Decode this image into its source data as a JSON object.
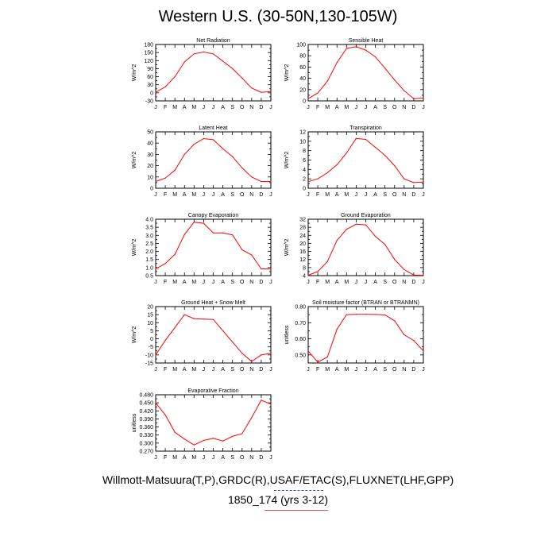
{
  "page": {
    "title": "Western U.S. (30-50N,130-105W)",
    "caption_line1": "Willmott-Matsuura(T,P),GRDC(R),USAF/ETAC(S),FLUXNET(LHF,GPP)",
    "caption_line2": "1850_174 (yrs 3-12)"
  },
  "colors": {
    "series": "#ff0000",
    "axis": "#000000",
    "underline_blue": "#3355cc",
    "underline_red": "#e05050"
  },
  "chart_data": [
    {
      "type": "line",
      "title": "Net Radiation",
      "ylabel": "W/m^2",
      "categories": [
        "J",
        "F",
        "M",
        "A",
        "M",
        "J",
        "J",
        "A",
        "S",
        "O",
        "N",
        "D",
        "J"
      ],
      "ylim": [
        -30,
        180
      ],
      "yticks": [
        -30,
        -15,
        0,
        15,
        30,
        45,
        60,
        75,
        90,
        105,
        120,
        135,
        150,
        165,
        180
      ],
      "ytick_labels": [
        "-30",
        "",
        "0",
        "",
        "30",
        "",
        "60",
        "",
        "90",
        "",
        "120",
        "",
        "150",
        "",
        "180"
      ],
      "values": [
        2,
        22,
        60,
        115,
        145,
        152,
        145,
        118,
        90,
        55,
        18,
        2,
        5
      ],
      "legend": "none",
      "grid": false
    },
    {
      "type": "line",
      "title": "Sensible Heat",
      "ylabel": "W/m^2",
      "categories": [
        "J",
        "F",
        "M",
        "A",
        "M",
        "J",
        "J",
        "A",
        "S",
        "O",
        "N",
        "D",
        "J"
      ],
      "ylim": [
        0,
        100
      ],
      "yticks": [
        0,
        10,
        20,
        30,
        40,
        50,
        60,
        70,
        80,
        90,
        100
      ],
      "ytick_labels": [
        "0",
        "",
        "20",
        "",
        "40",
        "",
        "60",
        "",
        "80",
        "",
        "100"
      ],
      "values": [
        4,
        14,
        35,
        68,
        93,
        96,
        90,
        78,
        58,
        37,
        18,
        4,
        5
      ],
      "legend": "none",
      "grid": false
    },
    {
      "type": "line",
      "title": "Latent Heat",
      "ylabel": "W/m^2",
      "categories": [
        "J",
        "F",
        "M",
        "A",
        "M",
        "J",
        "J",
        "A",
        "S",
        "O",
        "N",
        "D",
        "J"
      ],
      "ylim": [
        0,
        50
      ],
      "yticks": [
        0,
        5,
        10,
        15,
        20,
        25,
        30,
        35,
        40,
        45,
        50
      ],
      "ytick_labels": [
        "0",
        "",
        "10",
        "",
        "20",
        "",
        "30",
        "",
        "40",
        "",
        "50"
      ],
      "values": [
        6,
        9,
        16,
        30,
        39,
        44,
        43,
        35,
        28,
        18,
        10,
        6,
        6
      ],
      "legend": "none",
      "grid": false
    },
    {
      "type": "line",
      "title": "Transpiration",
      "ylabel": "W/m^2",
      "categories": [
        "J",
        "F",
        "M",
        "A",
        "M",
        "J",
        "J",
        "A",
        "S",
        "O",
        "N",
        "D",
        "J"
      ],
      "ylim": [
        0,
        12
      ],
      "yticks": [
        0,
        1,
        2,
        3,
        4,
        5,
        6,
        7,
        8,
        9,
        10,
        11,
        12
      ],
      "ytick_labels": [
        "0",
        "",
        "2",
        "",
        "4",
        "",
        "6",
        "",
        "8",
        "",
        "10",
        "",
        "12"
      ],
      "values": [
        1.4,
        2.0,
        3.3,
        5.0,
        7.5,
        10.6,
        10.4,
        8.7,
        7.0,
        4.8,
        2.0,
        1.2,
        1.3
      ],
      "legend": "none",
      "grid": false
    },
    {
      "type": "line",
      "title": "Canopy Evaporation",
      "ylabel": "W/m^2",
      "categories": [
        "J",
        "F",
        "M",
        "A",
        "M",
        "J",
        "J",
        "A",
        "S",
        "O",
        "N",
        "D",
        "J"
      ],
      "ylim": [
        0.5,
        4.0
      ],
      "yticks": [
        0.5,
        0.75,
        1.0,
        1.25,
        1.5,
        1.75,
        2.0,
        2.25,
        2.5,
        2.75,
        3.0,
        3.25,
        3.5,
        3.75,
        4.0
      ],
      "ytick_labels": [
        "0.5",
        "",
        "1.0",
        "",
        "1.5",
        "",
        "2.0",
        "",
        "2.5",
        "",
        "3.0",
        "",
        "3.5",
        "",
        "4.0"
      ],
      "values": [
        0.92,
        1.25,
        1.82,
        3.05,
        3.82,
        3.75,
        3.15,
        3.15,
        3.03,
        2.1,
        1.78,
        0.92,
        0.92
      ],
      "legend": "none",
      "grid": false
    },
    {
      "type": "line",
      "title": "Ground Evaporation",
      "ylabel": "W/m^2",
      "categories": [
        "J",
        "F",
        "M",
        "A",
        "M",
        "J",
        "J",
        "A",
        "S",
        "O",
        "N",
        "D",
        "J"
      ],
      "ylim": [
        4,
        32
      ],
      "yticks": [
        4,
        6,
        8,
        10,
        12,
        14,
        16,
        18,
        20,
        22,
        24,
        26,
        28,
        30,
        32
      ],
      "ytick_labels": [
        "4",
        "",
        "8",
        "",
        "12",
        "",
        "16",
        "",
        "20",
        "",
        "24",
        "",
        "28",
        "",
        "32"
      ],
      "values": [
        4.2,
        6,
        11,
        21.5,
        27,
        29.5,
        29.2,
        23.5,
        19.5,
        12,
        7,
        4.3,
        4.2
      ],
      "legend": "none",
      "grid": false
    },
    {
      "type": "line",
      "title": "Ground Heat + Snow Melt",
      "ylabel": "W/m^2",
      "categories": [
        "J",
        "F",
        "M",
        "A",
        "M",
        "J",
        "J",
        "A",
        "S",
        "O",
        "N",
        "D",
        "J"
      ],
      "ylim": [
        -15,
        20
      ],
      "yticks": [
        -15,
        -12.5,
        -10,
        -7.5,
        -5,
        -2.5,
        0,
        2.5,
        5,
        7.5,
        10,
        12.5,
        15,
        17.5,
        20
      ],
      "ytick_labels": [
        "-15",
        "",
        "-10",
        "",
        "-5",
        "",
        "0",
        "",
        "5",
        "",
        "10",
        "",
        "15",
        "",
        "20"
      ],
      "values": [
        -10,
        -1,
        7,
        15,
        12.5,
        12.2,
        12,
        5,
        -2,
        -9,
        -14,
        -10,
        -9
      ],
      "legend": "none",
      "grid": false
    },
    {
      "type": "line",
      "title": "Soil moisture factor (BTRAN or BTRANMN)",
      "ylabel": "unitless",
      "categories": [
        "J",
        "F",
        "M",
        "A",
        "M",
        "J",
        "J",
        "A",
        "S",
        "O",
        "N",
        "D",
        "J"
      ],
      "ylim": [
        0.45,
        0.8
      ],
      "yticks": [
        0.45,
        0.5,
        0.55,
        0.6,
        0.65,
        0.7,
        0.75,
        0.8
      ],
      "ytick_labels": [
        "",
        "0.50",
        "",
        "0.60",
        "",
        "0.70",
        "",
        "0.80"
      ],
      "values": [
        0.525,
        0.455,
        0.487,
        0.66,
        0.75,
        0.752,
        0.752,
        0.751,
        0.748,
        0.712,
        0.625,
        0.59,
        0.525
      ],
      "legend": "none",
      "grid": false
    },
    {
      "type": "line",
      "title": "Evaporative Fraction",
      "ylabel": "unitless",
      "categories": [
        "J",
        "F",
        "M",
        "A",
        "M",
        "J",
        "J",
        "A",
        "S",
        "O",
        "N",
        "D",
        "J"
      ],
      "ylim": [
        0.27,
        0.48
      ],
      "yticks": [
        0.27,
        0.285,
        0.3,
        0.315,
        0.33,
        0.345,
        0.36,
        0.375,
        0.39,
        0.405,
        0.42,
        0.435,
        0.45,
        0.465,
        0.48
      ],
      "ytick_labels": [
        "0.270",
        "",
        "0.300",
        "",
        "0.330",
        "",
        "0.360",
        "",
        "0.390",
        "",
        "0.420",
        "",
        "0.450",
        "",
        "0.480"
      ],
      "values": [
        0.45,
        0.405,
        0.34,
        0.315,
        0.293,
        0.31,
        0.318,
        0.308,
        0.325,
        0.335,
        0.395,
        0.46,
        0.445
      ],
      "legend": "none",
      "grid": false
    }
  ]
}
